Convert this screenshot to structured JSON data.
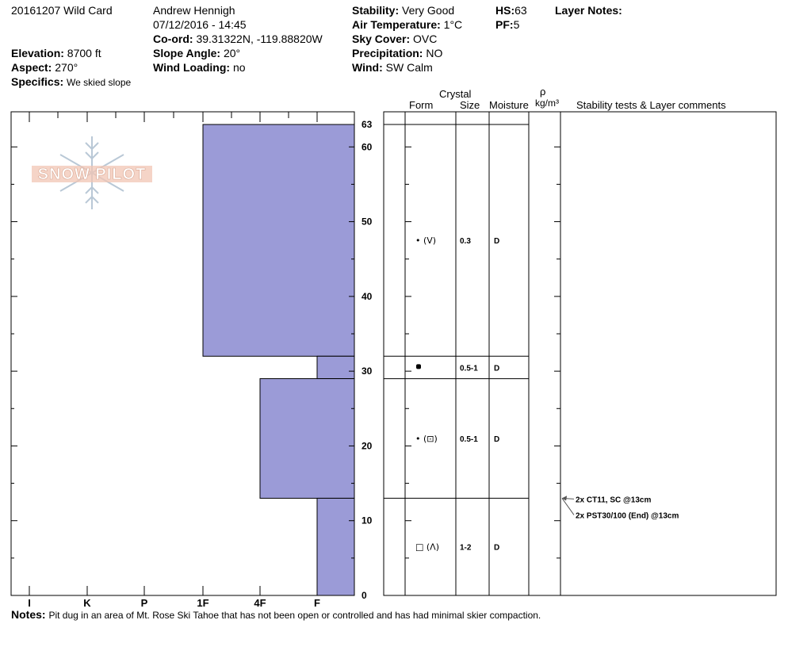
{
  "header": {
    "pit_name": "20161207 Wild Card",
    "observer": "Andrew Hennigh",
    "datetime": "07/12/2016 - 14:45",
    "coord_label": "Co-ord:",
    "coord_value": "39.31322N, -119.88820W",
    "elevation_label": "Elevation:",
    "elevation_value": "8700 ft",
    "aspect_label": "Aspect:",
    "aspect_value": "270°",
    "specifics_label": "Specifics:",
    "specifics_value": "We skied slope",
    "slope_label": "Slope Angle:",
    "slope_value": "20°",
    "wind_loading_label": "Wind Loading:",
    "wind_loading_value": "no",
    "stability_label": "Stability:",
    "stability_value": "Very Good",
    "air_temp_label": "Air Temperature:",
    "air_temp_value": "1°C",
    "sky_label": "Sky Cover:",
    "sky_value": "OVC",
    "precip_label": "Precipitation:",
    "precip_value": "NO",
    "wind_label": "Wind:",
    "wind_value": "SW Calm",
    "hs_label": "HS:",
    "hs_value": "63",
    "pf_label": "PF:",
    "pf_value": "5",
    "layer_notes_label": "Layer Notes:"
  },
  "logo_text": "SNOW PILOT",
  "columns": {
    "crystal": "Crystal",
    "form": "Form",
    "size": "Size",
    "moisture": "Moisture",
    "rho": "ρ",
    "density_unit": "kg/m³",
    "stability": "Stability tests & Layer comments"
  },
  "notes_label": "Notes:",
  "notes_value": "Pit dug in an area of Mt. Rose Ski Tahoe that has not been open or controlled and has had minimal skier compaction.",
  "colors": {
    "layer_fill": "#9b9bd7",
    "layer_stroke": "#000000"
  },
  "chart_data": {
    "type": "snow_profile_hardness",
    "x_categories": [
      "I",
      "K",
      "P",
      "1F",
      "4F",
      "F"
    ],
    "y_axis": {
      "min": 0,
      "max": 63,
      "major_ticks": [
        0,
        10,
        20,
        30,
        40,
        50,
        60
      ],
      "top_label": "63",
      "unit": "cm"
    },
    "layers": [
      {
        "top": 63,
        "bottom": 32,
        "hardness": "1F",
        "form": "• (V)",
        "size": "0.3",
        "moisture": "D"
      },
      {
        "top": 32,
        "bottom": 29,
        "hardness": "F",
        "form": "ice-layer",
        "size": "0.5-1",
        "moisture": "D"
      },
      {
        "top": 29,
        "bottom": 13,
        "hardness": "4F",
        "form": "• (⊡)",
        "size": "0.5-1",
        "moisture": "D"
      },
      {
        "top": 13,
        "bottom": 0,
        "hardness": "F",
        "form": "□ (Λ)",
        "size": "1-2",
        "moisture": "D"
      }
    ],
    "tests": [
      {
        "depth": 13,
        "text": "2x CT11, SC @13cm"
      },
      {
        "depth": 13,
        "text": "2x PST30/100 (End) @13cm"
      }
    ]
  }
}
